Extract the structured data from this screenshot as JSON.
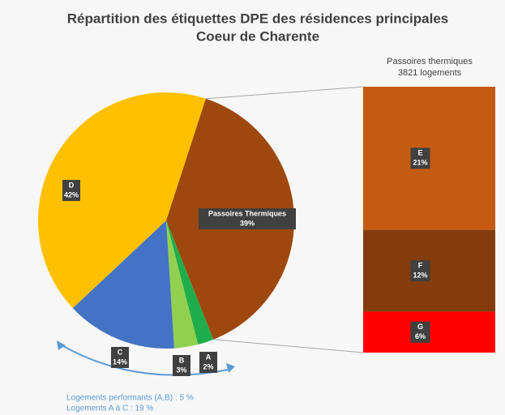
{
  "chart_data": {
    "type": "pie",
    "title": "Répartition des étiquettes DPE des résidences principales",
    "subtitle": "Coeur de Charente",
    "categories": [
      "Passoires Thermiques",
      "A",
      "B",
      "C",
      "D"
    ],
    "values": [
      39,
      2,
      3,
      14,
      42
    ],
    "value_labels": [
      "39%",
      "2%",
      "3%",
      "14%",
      "42%"
    ],
    "colors": [
      "#9e480e",
      "#1fae4b",
      "#92d050",
      "#4472c4",
      "#ffc000"
    ],
    "breakdown": {
      "title": [
        "Passoires thermiques",
        "3821 logements"
      ],
      "categories": [
        "E",
        "F",
        "G"
      ],
      "values": [
        21,
        12,
        6
      ],
      "value_labels": [
        "21%",
        "12%",
        "6%"
      ],
      "colors": [
        "#c55a11",
        "#843c0c",
        "#ff0000"
      ]
    },
    "annotations": [
      "Logements performants (A,B) : 5 %",
      "Logements A à C : 19 %"
    ]
  }
}
